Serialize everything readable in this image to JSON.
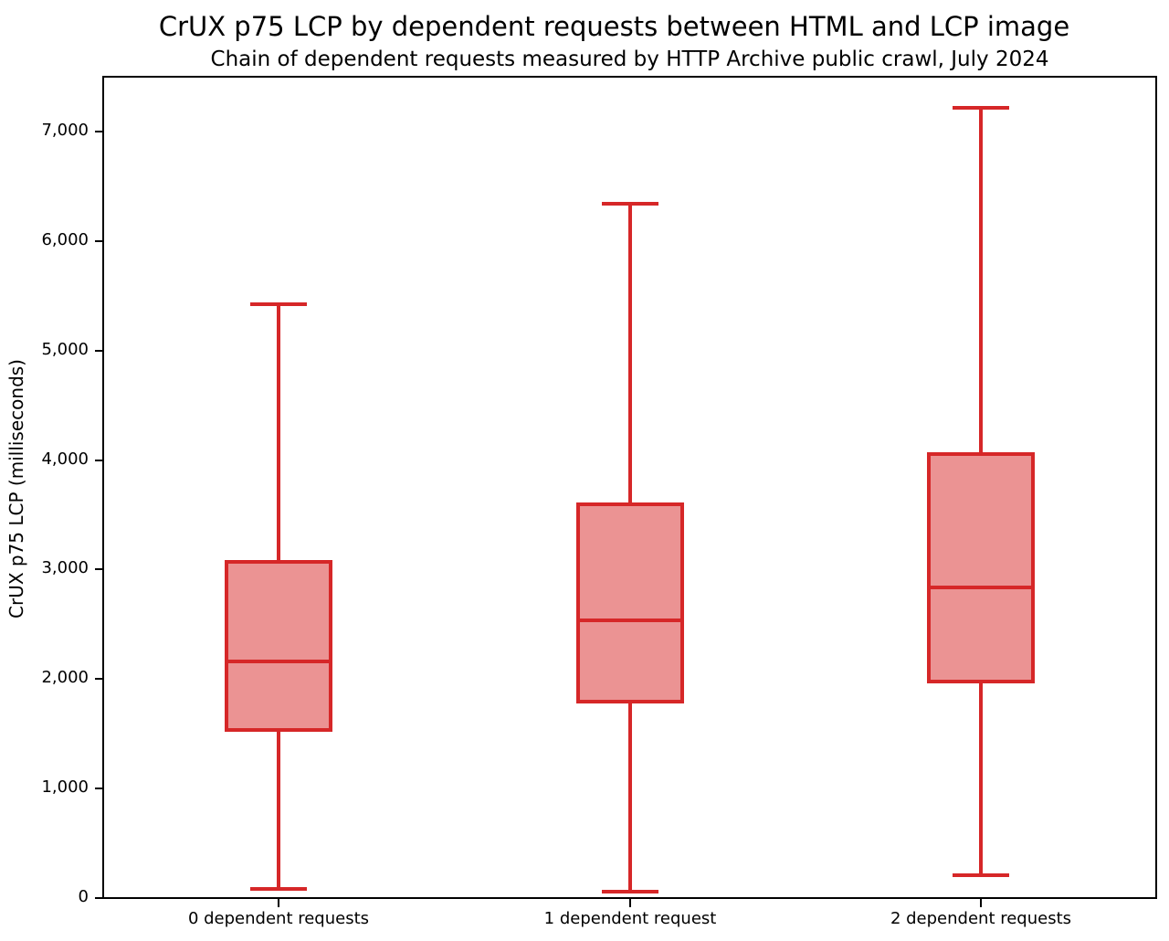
{
  "title": "CrUX p75 LCP by dependent requests between HTML and LCP image",
  "subtitle": "Chain of dependent requests measured by HTTP Archive public crawl, July 2024",
  "chart_data": {
    "type": "boxplot",
    "title": "CrUX p75 LCP by dependent requests between HTML and LCP image",
    "subtitle": "Chain of dependent requests measured by HTTP Archive public crawl, July 2024",
    "xlabel": "",
    "ylabel": "CrUX p75 LCP (milliseconds)",
    "ylim": [
      0,
      7500
    ],
    "yticks": [
      0,
      1000,
      2000,
      3000,
      4000,
      5000,
      6000,
      7000
    ],
    "ytick_labels": [
      "0",
      "1,000",
      "2,000",
      "3,000",
      "4,000",
      "5,000",
      "6,000",
      "7,000"
    ],
    "grid": false,
    "legend": false,
    "categories": [
      "0 dependent requests",
      "1 dependent request",
      "2 dependent requests"
    ],
    "series": [
      {
        "name": "0 dependent requests",
        "whisker_low": 80,
        "q1": 1520,
        "median": 2160,
        "q3": 3090,
        "whisker_high": 5420
      },
      {
        "name": "1 dependent request",
        "whisker_low": 60,
        "q1": 1780,
        "median": 2540,
        "q3": 3610,
        "whisker_high": 6340
      },
      {
        "name": "2 dependent requests",
        "whisker_low": 210,
        "q1": 1960,
        "median": 2840,
        "q3": 4070,
        "whisker_high": 7220
      }
    ],
    "colors": {
      "box_edge": "#d62728",
      "box_fill": "#eb9393",
      "axis": "#000000",
      "text": "#000000"
    }
  }
}
